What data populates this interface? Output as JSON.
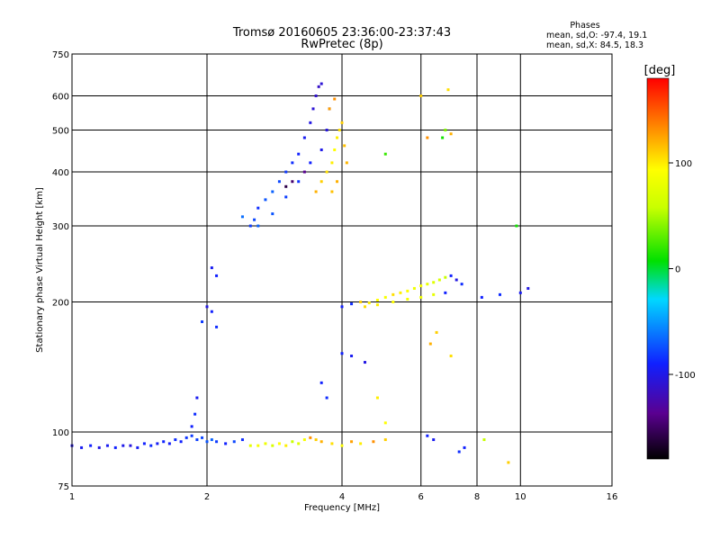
{
  "chart_data": {
    "type": "scatter",
    "title": "Tromsø 20160605 23:36:00-23:37:43",
    "subtitle": "RwPretec (8p)",
    "xlabel": "Frequency [MHz]",
    "ylabel": "Stationary phase Virtual Height [km]",
    "x_scale": "log",
    "y_scale": "log",
    "xlim": [
      1,
      16
    ],
    "ylim": [
      75,
      750
    ],
    "x_ticks": [
      1,
      2,
      4,
      6,
      8,
      10,
      16
    ],
    "y_ticks": [
      75,
      100,
      200,
      300,
      400,
      500,
      600,
      750
    ],
    "grid": true,
    "phases": {
      "heading": "Phases",
      "line_o": "mean, sd,O: -97.4, 19.1",
      "line_x": "mean, sd,X:  84.5, 18.3"
    },
    "colorbar": {
      "label": "[deg]",
      "range": [
        -180,
        180
      ],
      "ticks": [
        100,
        0,
        -100
      ],
      "colormap": "rainbow"
    },
    "series": [
      {
        "points": [
          [
            1.0,
            93,
            -110
          ],
          [
            1.05,
            92,
            -105
          ],
          [
            1.1,
            93,
            -100
          ],
          [
            1.15,
            92,
            -110
          ],
          [
            1.2,
            93,
            -105
          ],
          [
            1.25,
            92,
            -100
          ],
          [
            1.3,
            93,
            -108
          ],
          [
            1.35,
            93,
            -112
          ],
          [
            1.4,
            92,
            -104
          ],
          [
            1.45,
            94,
            -100
          ],
          [
            1.5,
            93,
            -96
          ],
          [
            1.55,
            94,
            -104
          ],
          [
            1.6,
            95,
            -98
          ],
          [
            1.65,
            94,
            -102
          ],
          [
            1.7,
            96,
            -95
          ],
          [
            1.75,
            95,
            -100
          ],
          [
            1.8,
            97,
            -92
          ],
          [
            1.85,
            98,
            -90
          ],
          [
            1.9,
            96,
            -88
          ],
          [
            1.95,
            97,
            -85
          ],
          [
            2.0,
            95,
            -80
          ],
          [
            2.05,
            96,
            -75
          ],
          [
            2.1,
            95,
            -90
          ],
          [
            2.2,
            94,
            -100
          ],
          [
            2.3,
            95,
            -85
          ],
          [
            2.4,
            96,
            -95
          ],
          [
            2.5,
            93,
            80
          ],
          [
            2.6,
            93,
            90
          ],
          [
            2.7,
            94,
            85
          ],
          [
            2.8,
            93,
            70
          ],
          [
            2.9,
            94,
            95
          ],
          [
            3.0,
            93,
            100
          ],
          [
            3.1,
            95,
            60
          ],
          [
            3.2,
            94,
            75
          ],
          [
            3.3,
            96,
            90
          ],
          [
            3.4,
            97,
            130
          ],
          [
            3.5,
            96,
            110
          ],
          [
            3.6,
            95,
            120
          ],
          [
            3.8,
            94,
            105
          ],
          [
            4.0,
            93,
            95
          ],
          [
            4.2,
            95,
            125
          ],
          [
            4.4,
            94,
            100
          ],
          [
            4.7,
            95,
            130
          ],
          [
            5.0,
            96,
            110
          ],
          [
            1.85,
            103,
            -100
          ],
          [
            1.88,
            110,
            -95
          ],
          [
            1.9,
            120,
            -105
          ],
          [
            1.95,
            180,
            -90
          ],
          [
            2.0,
            195,
            -110
          ],
          [
            2.05,
            190,
            -100
          ],
          [
            2.1,
            175,
            -95
          ],
          [
            2.1,
            230,
            -100
          ],
          [
            2.05,
            240,
            -105
          ],
          [
            2.5,
            300,
            -90
          ],
          [
            2.55,
            310,
            -85
          ],
          [
            2.6,
            330,
            -95
          ],
          [
            2.7,
            345,
            -80
          ],
          [
            2.8,
            360,
            -75
          ],
          [
            2.9,
            380,
            -85
          ],
          [
            3.0,
            400,
            -90
          ],
          [
            3.1,
            420,
            -95
          ],
          [
            3.2,
            440,
            -100
          ],
          [
            3.3,
            480,
            -105
          ],
          [
            3.4,
            520,
            -110
          ],
          [
            3.45,
            560,
            -115
          ],
          [
            3.5,
            600,
            -118
          ],
          [
            3.55,
            630,
            -120
          ],
          [
            3.6,
            640,
            -115
          ],
          [
            2.4,
            315,
            -70
          ],
          [
            2.6,
            300,
            -75
          ],
          [
            2.8,
            320,
            -80
          ],
          [
            3.0,
            350,
            -88
          ],
          [
            3.2,
            380,
            -92
          ],
          [
            3.4,
            420,
            -100
          ],
          [
            3.6,
            450,
            -108
          ],
          [
            3.7,
            500,
            -112
          ],
          [
            3.75,
            560,
            -118
          ],
          [
            3.0,
            370,
            -160
          ],
          [
            3.1,
            380,
            -150
          ],
          [
            3.3,
            400,
            -140
          ],
          [
            3.5,
            360,
            120
          ],
          [
            3.6,
            380,
            110
          ],
          [
            3.7,
            400,
            105
          ],
          [
            3.8,
            420,
            100
          ],
          [
            3.85,
            450,
            95
          ],
          [
            3.9,
            480,
            100
          ],
          [
            3.95,
            500,
            105
          ],
          [
            4.0,
            520,
            110
          ],
          [
            4.05,
            460,
            115
          ],
          [
            4.1,
            420,
            118
          ],
          [
            3.9,
            380,
            120
          ],
          [
            3.8,
            360,
            115
          ],
          [
            3.75,
            560,
            125
          ],
          [
            3.85,
            590,
            130
          ],
          [
            4.0,
            195,
            -100
          ],
          [
            4.2,
            198,
            -95
          ],
          [
            4.4,
            200,
            110
          ],
          [
            4.6,
            199,
            100
          ],
          [
            4.8,
            202,
            95
          ],
          [
            5.0,
            205,
            90
          ],
          [
            5.2,
            208,
            105
          ],
          [
            5.4,
            210,
            100
          ],
          [
            5.6,
            212,
            95
          ],
          [
            5.8,
            215,
            85
          ],
          [
            6.0,
            218,
            90
          ],
          [
            6.2,
            220,
            80
          ],
          [
            6.4,
            222,
            75
          ],
          [
            6.6,
            225,
            70
          ],
          [
            6.8,
            228,
            60
          ],
          [
            7.0,
            230,
            -100
          ],
          [
            7.2,
            225,
            -110
          ],
          [
            7.4,
            220,
            -95
          ],
          [
            4.5,
            195,
            105
          ],
          [
            4.8,
            197,
            100
          ],
          [
            5.2,
            200,
            95
          ],
          [
            5.6,
            203,
            90
          ],
          [
            6.0,
            205,
            85
          ],
          [
            6.4,
            208,
            80
          ],
          [
            6.8,
            210,
            -100
          ],
          [
            8.2,
            205,
            -100
          ],
          [
            9.0,
            208,
            -95
          ],
          [
            10.0,
            210,
            -105
          ],
          [
            10.4,
            215,
            -110
          ],
          [
            6.0,
            600,
            110
          ],
          [
            6.9,
            620,
            105
          ],
          [
            6.8,
            500,
            40
          ],
          [
            6.7,
            480,
            10
          ],
          [
            5.0,
            440,
            20
          ],
          [
            6.2,
            480,
            130
          ],
          [
            7.0,
            490,
            120
          ],
          [
            3.6,
            130,
            -100
          ],
          [
            3.7,
            120,
            -95
          ],
          [
            4.8,
            120,
            100
          ],
          [
            5.0,
            105,
            95
          ],
          [
            6.3,
            160,
            120
          ],
          [
            6.5,
            170,
            110
          ],
          [
            7.0,
            150,
            105
          ],
          [
            4.0,
            152,
            -100
          ],
          [
            4.2,
            150,
            -105
          ],
          [
            4.5,
            145,
            -110
          ],
          [
            6.2,
            98,
            -100
          ],
          [
            6.4,
            96,
            -105
          ],
          [
            7.3,
            90,
            -95
          ],
          [
            7.5,
            92,
            -100
          ],
          [
            8.3,
            96,
            60
          ],
          [
            9.4,
            85,
            110
          ],
          [
            9.8,
            300,
            10
          ]
        ]
      }
    ]
  }
}
